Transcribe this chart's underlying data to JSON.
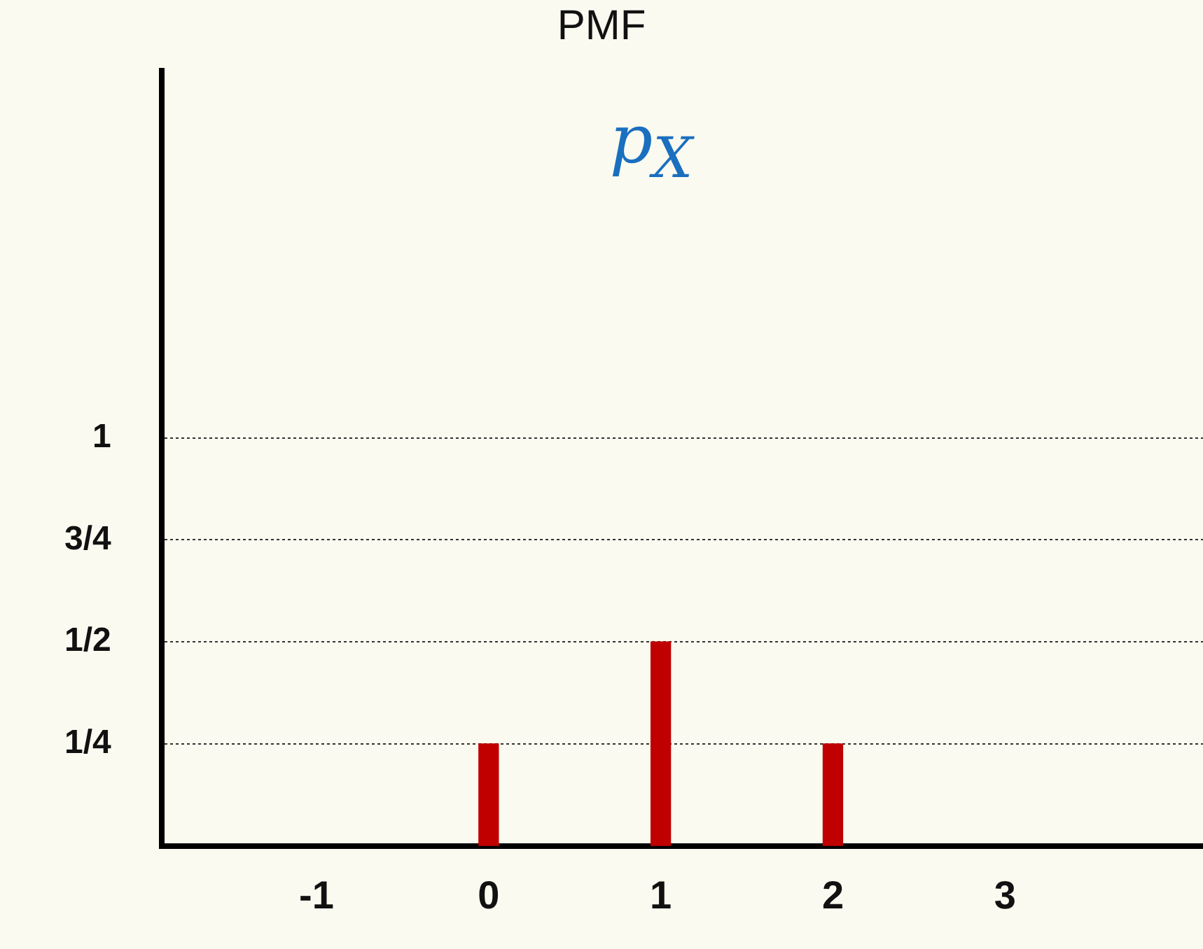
{
  "chart_data": {
    "type": "bar",
    "title": "PMF",
    "subtitle": "p$_{X}$",
    "x": [
      0,
      1,
      2
    ],
    "values": [
      0.25,
      0.5,
      0.25
    ],
    "color": "#c00000",
    "xlim": [
      -1.9,
      4.15
    ],
    "xticks": [
      -1,
      0,
      1,
      2,
      3
    ],
    "ylim": [
      0,
      1.9
    ],
    "yticks": [
      {
        "value": 0.25,
        "label": "1/4"
      },
      {
        "value": 0.5,
        "label": "1/2"
      },
      {
        "value": 0.75,
        "label": "3/4"
      },
      {
        "value": 1,
        "label": "1"
      }
    ],
    "grid": "y"
  }
}
